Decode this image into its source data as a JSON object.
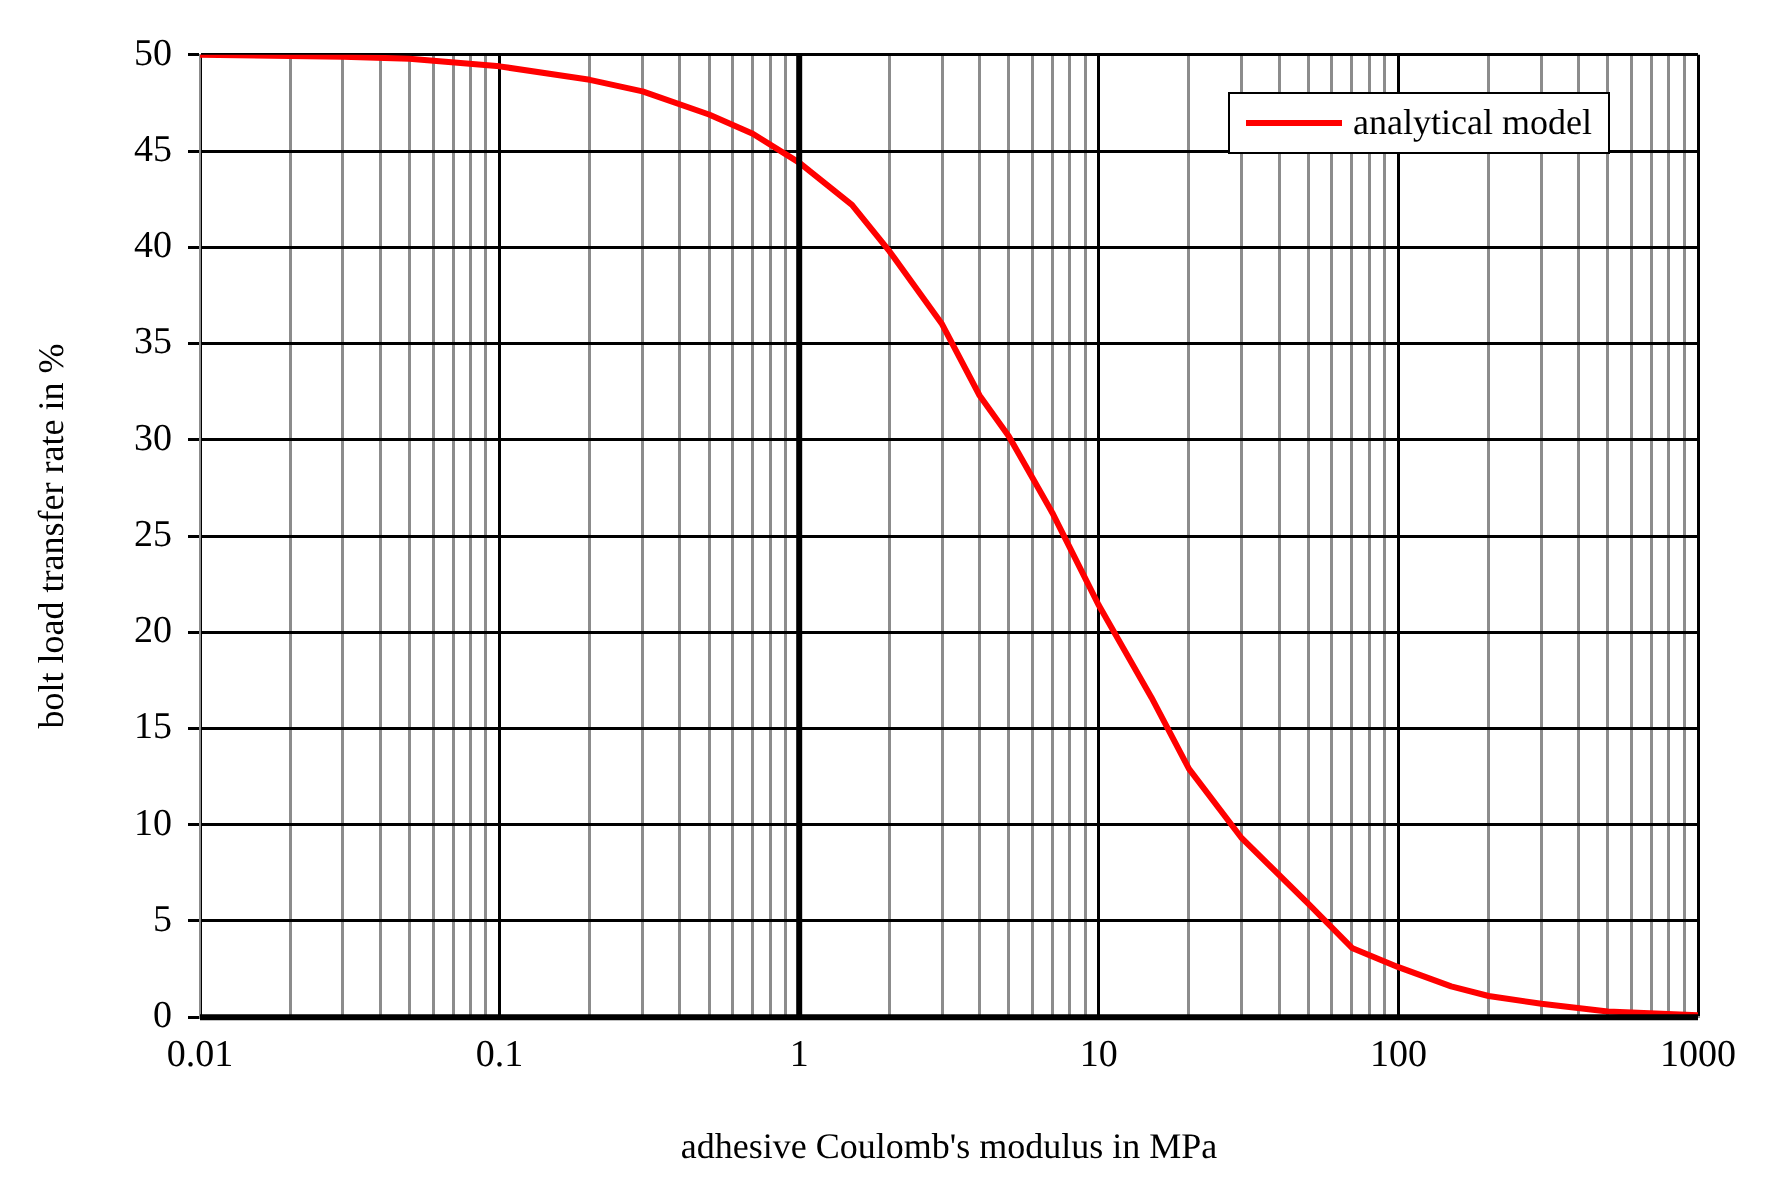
{
  "chart_data": {
    "type": "line",
    "xlabel": "adhesive Coulomb's modulus in MPa",
    "ylabel": "bolt load transfer rate in %",
    "log": "x",
    "grid": true,
    "legend": "top right",
    "marker": "none",
    "line_style": "solid",
    "xlim": [
      0.01,
      1000
    ],
    "xticks": [
      0.01,
      {
        "value": 0.02,
        "label": null
      },
      {
        "value": 0.03,
        "label": null
      },
      {
        "value": 0.04,
        "label": null
      },
      {
        "value": 0.05,
        "label": null
      },
      {
        "value": 0.06,
        "label": null
      },
      {
        "value": 0.07,
        "label": null
      },
      {
        "value": 0.08,
        "label": null
      },
      {
        "value": 0.09,
        "label": null
      },
      0.1,
      {
        "value": 0.2,
        "label": null
      },
      {
        "value": 0.3,
        "label": null
      },
      {
        "value": 0.4,
        "label": null
      },
      {
        "value": 0.5,
        "label": null
      },
      {
        "value": 0.6,
        "label": null
      },
      {
        "value": 0.7,
        "label": null
      },
      {
        "value": 0.8,
        "label": null
      },
      {
        "value": 0.9,
        "label": null
      },
      1,
      {
        "value": 2,
        "label": null
      },
      {
        "value": 3,
        "label": null
      },
      {
        "value": 4,
        "label": null
      },
      {
        "value": 5,
        "label": null
      },
      {
        "value": 6,
        "label": null
      },
      {
        "value": 7,
        "label": null
      },
      {
        "value": 8,
        "label": null
      },
      {
        "value": 9,
        "label": null
      },
      10,
      {
        "value": 20,
        "label": null
      },
      {
        "value": 30,
        "label": null
      },
      {
        "value": 40,
        "label": null
      },
      {
        "value": 50,
        "label": null
      },
      {
        "value": 60,
        "label": null
      },
      {
        "value": 70,
        "label": null
      },
      {
        "value": 80,
        "label": null
      },
      {
        "value": 90,
        "label": null
      },
      100,
      {
        "value": 200,
        "label": null
      },
      {
        "value": 300,
        "label": null
      },
      {
        "value": 400,
        "label": null
      },
      {
        "value": 500,
        "label": null
      },
      {
        "value": 600,
        "label": null
      },
      {
        "value": 700,
        "label": null
      },
      {
        "value": 800,
        "label": null
      },
      {
        "value": 900,
        "label": null
      },
      1000
    ],
    "ylim": [
      0,
      50
    ],
    "yticks": [
      0,
      5,
      10,
      15,
      20,
      25,
      30,
      35,
      40,
      45,
      50
    ],
    "ref_lines": [
      {
        "axis": "x",
        "value": 1,
        "color": "#000000"
      }
    ],
    "series": [
      {
        "name": "analytical model",
        "color": "#ff0000",
        "x": [
          0.01,
          0.03,
          0.05,
          0.1,
          0.2,
          0.3,
          0.5,
          0.7,
          1,
          1.5,
          2,
          3,
          4,
          5,
          7,
          10,
          15,
          20,
          30,
          50,
          70,
          100,
          150,
          200,
          300,
          500,
          1000
        ],
        "values": [
          50,
          49.9,
          49.8,
          49.4,
          48.7,
          48.1,
          46.9,
          45.9,
          44.4,
          42.2,
          39.8,
          36,
          32.3,
          30.2,
          26.2,
          21.4,
          16.6,
          12.9,
          9.3,
          5.9,
          3.6,
          2.6,
          1.6,
          1.1,
          0.7,
          0.3,
          0.1
        ]
      }
    ]
  }
}
